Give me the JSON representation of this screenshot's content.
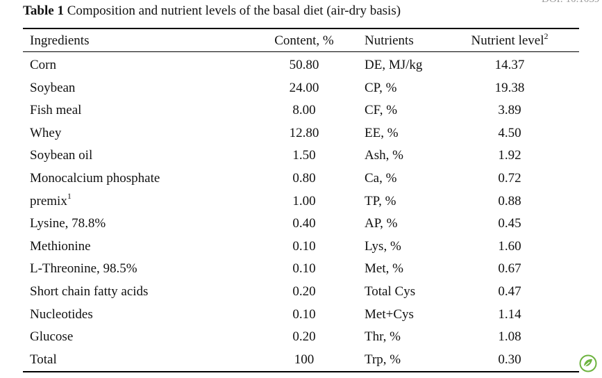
{
  "doi_fragment": "DOI: 10.1039",
  "caption": {
    "label": "Table 1",
    "text": "Composition and nutrient levels of the basal diet (air-dry basis)"
  },
  "headers": {
    "ingredients": "Ingredients",
    "content": "Content, %",
    "nutrients": "Nutrients",
    "nutrient_level": "Nutrient level",
    "nutrient_level_sup": "2"
  },
  "rows": [
    {
      "ingredient": "Corn",
      "ingredient_sup": "",
      "content": "50.80",
      "nutrient": "DE, MJ/kg",
      "level": "14.37"
    },
    {
      "ingredient": "Soybean",
      "ingredient_sup": "",
      "content": "24.00",
      "nutrient": "CP, %",
      "level": "19.38"
    },
    {
      "ingredient": "Fish meal",
      "ingredient_sup": "",
      "content": "8.00",
      "nutrient": "CF, %",
      "level": "3.89"
    },
    {
      "ingredient": "Whey",
      "ingredient_sup": "",
      "content": "12.80",
      "nutrient": "EE, %",
      "level": "4.50"
    },
    {
      "ingredient": "Soybean oil",
      "ingredient_sup": "",
      "content": "1.50",
      "nutrient": "Ash, %",
      "level": "1.92"
    },
    {
      "ingredient": "Monocalcium phosphate",
      "ingredient_sup": "",
      "content": "0.80",
      "nutrient": "Ca, %",
      "level": "0.72"
    },
    {
      "ingredient": "premix",
      "ingredient_sup": "1",
      "content": "1.00",
      "nutrient": "TP, %",
      "level": "0.88"
    },
    {
      "ingredient": "Lysine, 78.8%",
      "ingredient_sup": "",
      "content": "0.40",
      "nutrient": "AP, %",
      "level": "0.45"
    },
    {
      "ingredient": "Methionine",
      "ingredient_sup": "",
      "content": "0.10",
      "nutrient": "Lys, %",
      "level": "1.60"
    },
    {
      "ingredient": "L-Threonine, 98.5%",
      "ingredient_sup": "",
      "content": "0.10",
      "nutrient": "Met, %",
      "level": "0.67"
    },
    {
      "ingredient": "Short chain fatty acids",
      "ingredient_sup": "",
      "content": "0.20",
      "nutrient": "Total Cys",
      "level": "0.47"
    },
    {
      "ingredient": "Nucleotides",
      "ingredient_sup": "",
      "content": "0.10",
      "nutrient": "Met+Cys",
      "level": "1.14"
    },
    {
      "ingredient": "Glucose",
      "ingredient_sup": "",
      "content": "0.20",
      "nutrient": "Thr, %",
      "level": "1.08"
    },
    {
      "ingredient": "Total",
      "ingredient_sup": "",
      "content": "100",
      "nutrient": "Trp, %",
      "level": "0.30"
    }
  ],
  "icons": {
    "corner_logo": "leaf-badge-icon"
  },
  "colors": {
    "logo_green": "#6db33f"
  }
}
